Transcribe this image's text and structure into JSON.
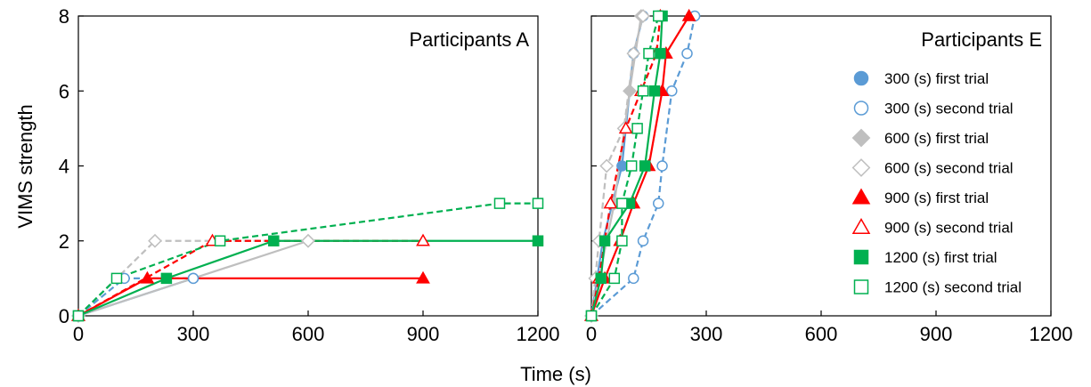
{
  "chart_data": {
    "type": "line",
    "ylabel": "VIMS strength",
    "xlabel": "Time (s)",
    "xlim": [
      0,
      1200
    ],
    "ylim": [
      0,
      8
    ],
    "x_ticks": [
      "0",
      "300",
      "600",
      "900",
      "1200"
    ],
    "y_ticks": [
      "0",
      "2",
      "4",
      "6",
      "8"
    ],
    "legend_position": "right of panel E",
    "legend": [
      {
        "label": "300 (s) first trial",
        "color": "#5b9bd5",
        "marker": "circle",
        "filled": true
      },
      {
        "label": "300 (s) second trial",
        "color": "#5b9bd5",
        "marker": "circle",
        "filled": false
      },
      {
        "label": "600 (s) first trial",
        "color": "#bfbfbf",
        "marker": "diamond",
        "filled": true
      },
      {
        "label": "600 (s) second trial",
        "color": "#bfbfbf",
        "marker": "diamond",
        "filled": false
      },
      {
        "label": "900 (s) first trial",
        "color": "#ff0000",
        "marker": "triangle",
        "filled": true
      },
      {
        "label": "900 (s) second trial",
        "color": "#ff0000",
        "marker": "triangle",
        "filled": false
      },
      {
        "label": "1200 (s) first trial",
        "color": "#00b050",
        "marker": "square",
        "filled": true
      },
      {
        "label": "1200 (s) second trial",
        "color": "#00b050",
        "marker": "square",
        "filled": false
      }
    ],
    "panels": [
      {
        "title": "Participants A",
        "series": [
          {
            "legend_index": 0,
            "dash": false,
            "points": [
              [
                0,
                0
              ],
              [
                300,
                1
              ]
            ]
          },
          {
            "legend_index": 1,
            "dash": true,
            "points": [
              [
                0,
                0
              ],
              [
                120,
                1
              ],
              [
                300,
                1
              ]
            ]
          },
          {
            "legend_index": 2,
            "dash": false,
            "points": [
              [
                0,
                0
              ],
              [
                600,
                2
              ]
            ]
          },
          {
            "legend_index": 3,
            "dash": true,
            "points": [
              [
                0,
                0
              ],
              [
                200,
                2
              ],
              [
                600,
                2
              ]
            ]
          },
          {
            "legend_index": 4,
            "dash": false,
            "points": [
              [
                0,
                0
              ],
              [
                180,
                1
              ],
              [
                900,
                1
              ]
            ]
          },
          {
            "legend_index": 5,
            "dash": true,
            "points": [
              [
                0,
                0
              ],
              [
                350,
                2
              ],
              [
                900,
                2
              ]
            ]
          },
          {
            "legend_index": 6,
            "dash": false,
            "points": [
              [
                0,
                0
              ],
              [
                230,
                1
              ],
              [
                510,
                2
              ],
              [
                1200,
                2
              ]
            ]
          },
          {
            "legend_index": 7,
            "dash": true,
            "points": [
              [
                0,
                0
              ],
              [
                100,
                1
              ],
              [
                370,
                2
              ],
              [
                1100,
                3
              ],
              [
                1200,
                3
              ]
            ]
          }
        ]
      },
      {
        "title": "Participants E",
        "series": [
          {
            "legend_index": 0,
            "dash": false,
            "points": [
              [
                0,
                0
              ],
              [
                30,
                2
              ],
              [
                80,
                4
              ],
              [
                110,
                7
              ],
              [
                135,
                8
              ]
            ]
          },
          {
            "legend_index": 1,
            "dash": true,
            "points": [
              [
                0,
                0
              ],
              [
                110,
                1
              ],
              [
                135,
                2
              ],
              [
                175,
                3
              ],
              [
                185,
                4
              ],
              [
                210,
                6
              ],
              [
                250,
                7
              ],
              [
                270,
                8
              ]
            ]
          },
          {
            "legend_index": 2,
            "dash": false,
            "points": [
              [
                0,
                0
              ],
              [
                60,
                3
              ],
              [
                100,
                6
              ],
              [
                130,
                8
              ]
            ]
          },
          {
            "legend_index": 3,
            "dash": true,
            "points": [
              [
                0,
                0
              ],
              [
                10,
                1
              ],
              [
                20,
                2
              ],
              [
                40,
                4
              ],
              [
                85,
                5
              ],
              [
                110,
                7
              ],
              [
                135,
                8
              ]
            ]
          },
          {
            "legend_index": 4,
            "dash": false,
            "points": [
              [
                0,
                0
              ],
              [
                35,
                1
              ],
              [
                75,
                2
              ],
              [
                110,
                3
              ],
              [
                150,
                4
              ],
              [
                185,
                6
              ],
              [
                195,
                7
              ],
              [
                255,
                8
              ]
            ]
          },
          {
            "legend_index": 5,
            "dash": true,
            "points": [
              [
                0,
                0
              ],
              [
                20,
                1
              ],
              [
                50,
                3
              ],
              [
                90,
                5
              ],
              [
                130,
                6
              ],
              [
                170,
                7
              ],
              [
                180,
                8
              ]
            ]
          },
          {
            "legend_index": 6,
            "dash": false,
            "points": [
              [
                0,
                0
              ],
              [
                25,
                1
              ],
              [
                35,
                2
              ],
              [
                100,
                3
              ],
              [
                140,
                4
              ],
              [
                165,
                6
              ],
              [
                180,
                7
              ],
              [
                185,
                8
              ]
            ]
          },
          {
            "legend_index": 7,
            "dash": true,
            "points": [
              [
                0,
                0
              ],
              [
                60,
                1
              ],
              [
                80,
                2
              ],
              [
                80,
                3
              ],
              [
                105,
                4
              ],
              [
                120,
                5
              ],
              [
                135,
                6
              ],
              [
                150,
                7
              ],
              [
                175,
                8
              ]
            ]
          }
        ]
      }
    ]
  }
}
